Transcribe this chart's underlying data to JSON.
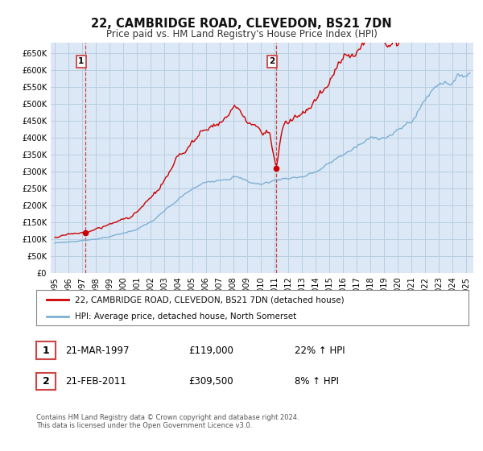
{
  "title_line1": "22, CAMBRIDGE ROAD, CLEVEDON, BS21 7DN",
  "title_line2": "Price paid vs. HM Land Registry's House Price Index (HPI)",
  "bg_color": "#dce8f5",
  "grid_color": "#b8cfe0",
  "price_paid_color": "#cc0000",
  "hpi_color": "#7db0d5",
  "sale1_date_num": 1997.22,
  "sale1_price": 119000,
  "sale1_label": "1",
  "sale2_date_num": 2011.13,
  "sale2_price": 309500,
  "sale2_label": "2",
  "vline_color": "#cc4444",
  "yticks": [
    0,
    50000,
    100000,
    150000,
    200000,
    250000,
    300000,
    350000,
    400000,
    450000,
    500000,
    550000,
    600000,
    650000
  ],
  "ytick_labels": [
    "£0",
    "£50K",
    "£100K",
    "£150K",
    "£200K",
    "£250K",
    "£300K",
    "£350K",
    "£400K",
    "£450K",
    "£500K",
    "£550K",
    "£600K",
    "£650K"
  ],
  "xmin": 1994.7,
  "xmax": 2025.5,
  "ymin": 0,
  "ymax": 680000,
  "legend_line1": "22, CAMBRIDGE ROAD, CLEVEDON, BS21 7DN (detached house)",
  "legend_line2": "HPI: Average price, detached house, North Somerset",
  "note1_date": "21-MAR-1997",
  "note1_price": "£119,000",
  "note1_hpi": "22% ↑ HPI",
  "note2_date": "21-FEB-2011",
  "note2_price": "£309,500",
  "note2_hpi": "8% ↑ HPI",
  "footer": "Contains HM Land Registry data © Crown copyright and database right 2024.\nThis data is licensed under the Open Government Licence v3.0."
}
